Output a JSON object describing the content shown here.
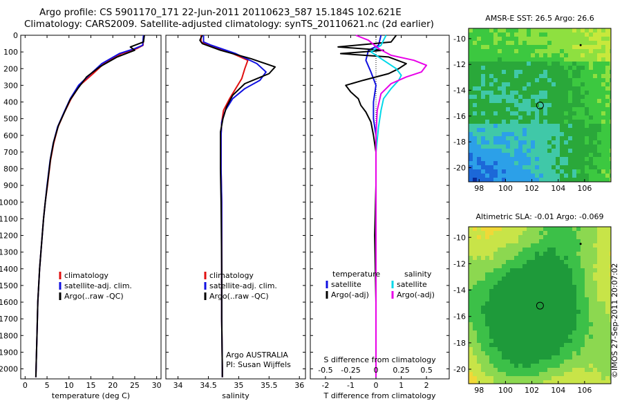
{
  "header": {
    "line1": "Argo profile: CS 5901170_171 22-Jun-2011 20110623_587 15.184S 102.621E",
    "line2": "Climatology: CARS2009. Satellite-adjusted climatology: synTS_20110621.nc (2d earlier)"
  },
  "stamp": "©IMOS 27-Sep-2011 20:07:02",
  "chart_data": [
    {
      "id": "temperature",
      "type": "line",
      "xlabel": "temperature (deg C)",
      "ylabel": "",
      "xlim": [
        -1,
        31
      ],
      "ylim": [
        2060,
        0
      ],
      "xticks": [
        0,
        5,
        10,
        15,
        20,
        25,
        30
      ],
      "yticks": [
        0,
        100,
        200,
        300,
        400,
        500,
        600,
        700,
        800,
        900,
        1000,
        1100,
        1200,
        1300,
        1400,
        1500,
        1600,
        1700,
        1800,
        1900,
        2000
      ],
      "legend": {
        "placement": "lower-center",
        "entries": [
          "climatology",
          "satellite-adj. clim.",
          "Argo(..raw -QC)"
        ]
      },
      "series": [
        {
          "name": "climatology",
          "color": "#e01010",
          "x": [
            27,
            26.9,
            25.5,
            22,
            18,
            15.5,
            12.5,
            10.5,
            9,
            7.5,
            6.5,
            5.8,
            5.1,
            4.6,
            4.2,
            3.9,
            3.6,
            3.3,
            3.1,
            2.9,
            2.7,
            2.55,
            2.45
          ],
          "y": [
            0,
            60,
            80,
            110,
            170,
            230,
            300,
            380,
            460,
            550,
            650,
            750,
            900,
            1000,
            1100,
            1200,
            1300,
            1400,
            1500,
            1600,
            1800,
            1950,
            2050
          ]
        },
        {
          "name": "satellite-adj. clim.",
          "color": "#1010e0",
          "x": [
            27,
            26.8,
            25,
            21.5,
            17.5,
            15,
            12.2,
            10.3,
            8.9,
            7.4,
            6.4,
            5.7,
            5,
            4.6,
            4.2,
            3.9,
            3.6,
            3.3,
            3.1,
            2.9,
            2.7,
            2.55,
            2.45
          ],
          "y": [
            0,
            60,
            80,
            110,
            170,
            230,
            300,
            380,
            460,
            550,
            650,
            750,
            900,
            1000,
            1100,
            1200,
            1300,
            1400,
            1500,
            1600,
            1800,
            1950,
            2050
          ]
        },
        {
          "name": "Argo(..raw -QC)",
          "color": "#000000",
          "x": [
            27.2,
            27,
            24,
            25,
            21,
            17,
            14,
            12,
            10.2,
            9,
            7.6,
            6.5,
            5.8,
            5.1,
            4.6,
            4.2,
            3.9,
            3.6,
            3.3,
            3.1,
            2.9,
            2.7,
            2.55,
            2.45
          ],
          "y": [
            0,
            40,
            70,
            90,
            130,
            190,
            250,
            320,
            390,
            460,
            540,
            640,
            740,
            890,
            1000,
            1100,
            1200,
            1300,
            1400,
            1500,
            1600,
            1800,
            1950,
            2050
          ]
        }
      ]
    },
    {
      "id": "salinity",
      "type": "line",
      "xlabel": "salinity",
      "ylabel": "",
      "xlim": [
        33.8,
        36.1
      ],
      "ylim": [
        2060,
        0
      ],
      "xticks": [
        34,
        34.5,
        35,
        35.5,
        36
      ],
      "yticks": [],
      "legend": {
        "placement": "lower-center",
        "entries": [
          "climatology",
          "satellite-adj. clim.",
          "Argo(..raw -QC)"
        ]
      },
      "annotation": [
        "Argo AUSTRALIA",
        "PI: Susan Wijffels"
      ],
      "series": [
        {
          "name": "climatology",
          "color": "#e01010",
          "x": [
            34.38,
            34.38,
            34.5,
            34.9,
            35.15,
            35.1,
            35.05,
            34.95,
            34.85,
            34.75,
            34.72,
            34.71,
            34.71,
            34.72,
            34.72,
            34.72,
            34.73,
            34.73
          ],
          "y": [
            0,
            40,
            60,
            110,
            150,
            200,
            260,
            320,
            380,
            450,
            520,
            600,
            800,
            1000,
            1400,
            1700,
            2000,
            2050
          ]
        },
        {
          "name": "satellite-adj. clim.",
          "color": "#1010e0",
          "x": [
            34.42,
            34.42,
            34.55,
            34.95,
            35.3,
            35.45,
            35.35,
            35.1,
            34.9,
            34.78,
            34.72,
            34.71,
            34.71,
            34.72,
            34.72,
            34.72,
            34.73,
            34.73
          ],
          "y": [
            0,
            40,
            60,
            110,
            170,
            220,
            270,
            320,
            380,
            450,
            520,
            600,
            800,
            1000,
            1400,
            1700,
            2000,
            2050
          ]
        },
        {
          "name": "Argo(..raw -QC)",
          "color": "#000000",
          "x": [
            34.4,
            34.36,
            34.4,
            34.7,
            35.2,
            35.6,
            35.5,
            35.1,
            34.9,
            34.8,
            34.74,
            34.7,
            34.7,
            34.71,
            34.72,
            34.72,
            34.73,
            34.73
          ],
          "y": [
            0,
            30,
            50,
            90,
            140,
            190,
            230,
            290,
            360,
            430,
            500,
            580,
            800,
            1000,
            1400,
            1700,
            2000,
            2050
          ]
        }
      ]
    },
    {
      "id": "difference",
      "type": "line",
      "xlabel": "T difference from climatology",
      "xlabel_top": "S difference from climatology",
      "ylabel": "",
      "xlim": [
        -2.6,
        2.9
      ],
      "ylim": [
        2060,
        0
      ],
      "xticks": [
        -2,
        -1,
        0,
        1,
        2
      ],
      "xticks_s": [
        "-0.5",
        "-0.25",
        "0",
        "0.25",
        "0.5"
      ],
      "xticks_s_pos": [
        -2,
        -1,
        0,
        1,
        2
      ],
      "yticks": [],
      "legend": {
        "placement": "lower-center",
        "entries": [
          "temperature",
          "satellite",
          "Argo(-adj)",
          "salinity",
          "satellite",
          "Argo(-adj)"
        ]
      },
      "series": [
        {
          "name": "satellite",
          "group": "temperature",
          "color": "#1010e0",
          "x": [
            0.2,
            0.1,
            -0.3,
            -0.4,
            -0.2,
            0,
            -0.1,
            -0.1,
            0,
            0,
            0,
            0,
            0
          ],
          "y": [
            0,
            60,
            90,
            150,
            220,
            300,
            400,
            500,
            600,
            800,
            1200,
            1600,
            2050
          ]
        },
        {
          "name": "Argo(-adj)",
          "group": "temperature",
          "color": "#000000",
          "x": [
            0.8,
            0.6,
            -1.5,
            0.3,
            -1.4,
            0.5,
            1.2,
            0.9,
            0.5,
            -0.5,
            -1.2,
            -1.0,
            -0.7,
            -0.6,
            -0.4,
            -0.2,
            -0.1,
            0,
            0,
            -0.05,
            0,
            0
          ],
          "y": [
            0,
            40,
            70,
            90,
            110,
            130,
            170,
            200,
            230,
            270,
            300,
            340,
            380,
            420,
            460,
            520,
            600,
            700,
            900,
            1200,
            1600,
            2050
          ]
        },
        {
          "name": "satellite",
          "group": "salinity",
          "color": "#00d8e8",
          "x": [
            0.4,
            0.2,
            -0.2,
            0.3,
            0.8,
            1.0,
            0.9,
            0.6,
            0.3,
            0.2,
            0.1,
            0,
            0,
            0
          ],
          "y": [
            0,
            60,
            100,
            150,
            200,
            240,
            270,
            320,
            380,
            450,
            550,
            700,
            1200,
            2050
          ]
        },
        {
          "name": "Argo(-adj)",
          "group": "salinity",
          "color": "#e800e8",
          "x": [
            -0.8,
            -0.3,
            0.1,
            0.6,
            1.5,
            2.0,
            1.8,
            1.2,
            0.6,
            0.2,
            0.05,
            0,
            0,
            0
          ],
          "y": [
            0,
            30,
            80,
            120,
            150,
            180,
            220,
            250,
            290,
            350,
            450,
            600,
            1200,
            2050
          ]
        }
      ]
    },
    {
      "id": "sst_map",
      "type": "heatmap",
      "title": "AMSR-E SST: 26.5 Argo: 26.6",
      "xlim": [
        97.2,
        108
      ],
      "ylim": [
        -21.1,
        -9.2
      ],
      "xticks": [
        98,
        100,
        102,
        104,
        106
      ],
      "yticks": [
        -10,
        -12,
        -14,
        -16,
        -18,
        -20
      ],
      "marker": {
        "lon": 102.62,
        "lat": -15.18
      },
      "palette": [
        "#0a2a9a",
        "#1c68d8",
        "#2ca0e8",
        "#40c8a8",
        "#2aa83a",
        "#3cc840",
        "#8ee040",
        "#c8e83c"
      ]
    },
    {
      "id": "sla_map",
      "type": "heatmap",
      "title": "Altimetric SLA: -0.01 Argo: -0.069",
      "xlim": [
        97.2,
        108
      ],
      "ylim": [
        -21.1,
        -9.2
      ],
      "xticks": [
        98,
        100,
        102,
        104,
        106
      ],
      "yticks": [
        -10,
        -12,
        -14,
        -16,
        -18,
        -20
      ],
      "marker": {
        "lon": 102.62,
        "lat": -15.18
      },
      "palette": [
        "#1e9a3a",
        "#3cc048",
        "#8cd850",
        "#c8e448",
        "#f0d838",
        "#f4b830"
      ]
    }
  ]
}
